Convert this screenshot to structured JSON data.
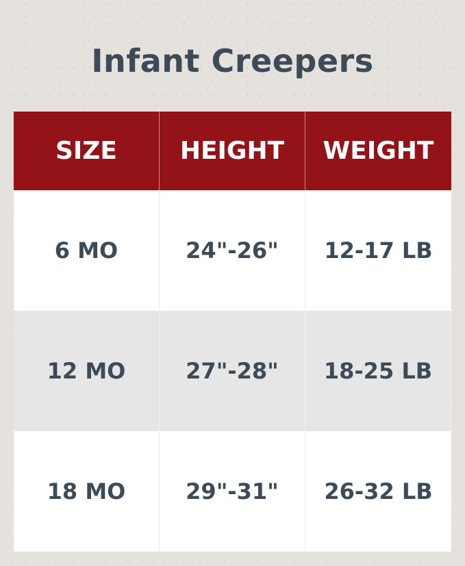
{
  "title": "Infant Creepers",
  "colors": {
    "header": "#941318",
    "text": "#3d4a58",
    "alt_row": "#e6e6e6"
  },
  "headers": [
    "SIZE",
    "HEIGHT",
    "WEIGHT"
  ],
  "rows": [
    [
      "6 MO",
      "24\"-26\"",
      "12-17 LB"
    ],
    [
      "12 MO",
      "27\"-28\"",
      "18-25 LB"
    ],
    [
      "18 MO",
      "29\"-31\"",
      "26-32 LB"
    ]
  ]
}
